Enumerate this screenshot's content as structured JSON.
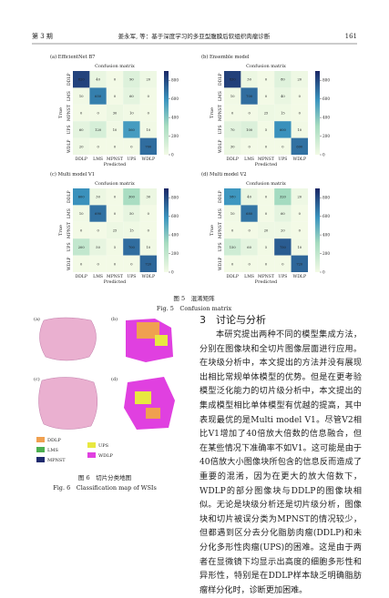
{
  "header": {
    "issue": "第 3 期",
    "running_title": "姜永军, 等：基于深度学习的多亚型腹膜后软组织肉瘤诊断",
    "page": "161"
  },
  "figure5": {
    "panels": [
      {
        "caption": "(a) EfficientNet B7",
        "title": "Confusion matrix",
        "xlabel": "Predicted",
        "ylabel": "True",
        "categories": [
          "DDLP",
          "LMS",
          "MPNST",
          "UPS",
          "WDLP"
        ],
        "values": [
          [
            820,
            40,
            0,
            90,
            20
          ],
          [
            10,
            650,
            0,
            60,
            0
          ],
          [
            0,
            0,
            30,
            10,
            0
          ],
          [
            60,
            120,
            10,
            560,
            10
          ],
          [
            20,
            0,
            0,
            0,
            700
          ]
        ],
        "cbar_lim": [
          0,
          900
        ],
        "cbar_ticks": [
          0,
          200,
          400,
          600,
          800
        ]
      },
      {
        "caption": "(b) Ensemble model",
        "title": "Confusion matrix",
        "xlabel": "Predicted",
        "ylabel": "True",
        "categories": [
          "DDLP",
          "LMS",
          "MPNST",
          "UPS",
          "WDLP"
        ],
        "values": [
          [
            830,
            30,
            0,
            80,
            20
          ],
          [
            10,
            700,
            0,
            40,
            0
          ],
          [
            0,
            0,
            25,
            15,
            0
          ],
          [
            70,
            100,
            5,
            600,
            10
          ],
          [
            30,
            0,
            0,
            0,
            690
          ]
        ],
        "cbar_lim": [
          0,
          900
        ],
        "cbar_ticks": [
          0,
          200,
          400,
          600,
          800
        ]
      },
      {
        "caption": "(c) Multi model V1",
        "title": "Confusion matrix",
        "xlabel": "Predicted",
        "ylabel": "True",
        "categories": [
          "DDLP",
          "LMS",
          "MPNST",
          "UPS",
          "WDLP"
        ],
        "values": [
          [
            600,
            30,
            0,
            300,
            30
          ],
          [
            10,
            690,
            0,
            50,
            0
          ],
          [
            0,
            0,
            25,
            15,
            0
          ],
          [
            200,
            50,
            5,
            700,
            10
          ],
          [
            0,
            0,
            0,
            0,
            720
          ]
        ],
        "cbar_lim": [
          0,
          900
        ],
        "cbar_ticks": [
          0,
          200,
          400,
          600,
          800
        ]
      },
      {
        "caption": "(d) Multi model V2",
        "title": "Confusion matrix",
        "xlabel": "Predicted",
        "ylabel": "True",
        "categories": [
          "DDLP",
          "LMS",
          "MPNST",
          "UPS",
          "WDLP"
        ],
        "values": [
          [
            580,
            40,
            0,
            320,
            20
          ],
          [
            10,
            680,
            0,
            60,
            0
          ],
          [
            0,
            0,
            20,
            20,
            0
          ],
          [
            150,
            60,
            5,
            750,
            10
          ],
          [
            0,
            0,
            0,
            0,
            720
          ]
        ],
        "cbar_lim": [
          0,
          900
        ],
        "cbar_ticks": [
          0,
          200,
          400,
          600,
          800
        ]
      }
    ],
    "caption_cn": "图 5　混淆矩阵",
    "caption_en": "Fig. 5　Confusion matrix"
  },
  "figure6": {
    "panels": [
      "(a)",
      "(b)",
      "(c)",
      "(d)"
    ],
    "legend": [
      {
        "name": "DDLP",
        "color": "#f0a050"
      },
      {
        "name": "LMS",
        "color": "#4caf50"
      },
      {
        "name": "MPNST",
        "color": "#1f2a6e"
      },
      {
        "name": "UPS",
        "color": "#e8e840"
      },
      {
        "name": "WDLP",
        "color": "#e040e0"
      }
    ],
    "caption_cn": "图 6　切片分类地图",
    "caption_en": "Fig. 6　Classification map of WSIs"
  },
  "section": {
    "title": "3　讨论与分析",
    "paragraph": "本研究提出两种不同的模型集成方法，分别在图像块和全切片图像层面进行应用。在块级分析中，本文提出的方法并没有展现出相比常规单体模型的优势。但是在更考验模型泛化能力的切片级分析中，本文提出的集成模型相比单体模型有优越的提高，其中表现最优的是Multi model V1。尽管V2相比V1增加了40倍放大倍数的信息融合，但在某些情况下准确率不如V1。这可能是由于40倍放大小图像块所包含的信息反而造成了重要的混淆，因为在更大的放大倍数下，WDLP的部分图像块与DDLP的图像块相似。无论是块级分析还是切片级分析，图像块和切片被误分类为MPNST的情况较少，但都遇到区分去分化脂肪肉瘤(DDLP)和未分化多形性肉瘤(UPS)的困难。这是由于两者在显微镜下均显示出高度的细胞多形性和异形性，特别是在DDLP样本缺乏明确脂肪瘤样分化时，诊断更加困难。"
  }
}
